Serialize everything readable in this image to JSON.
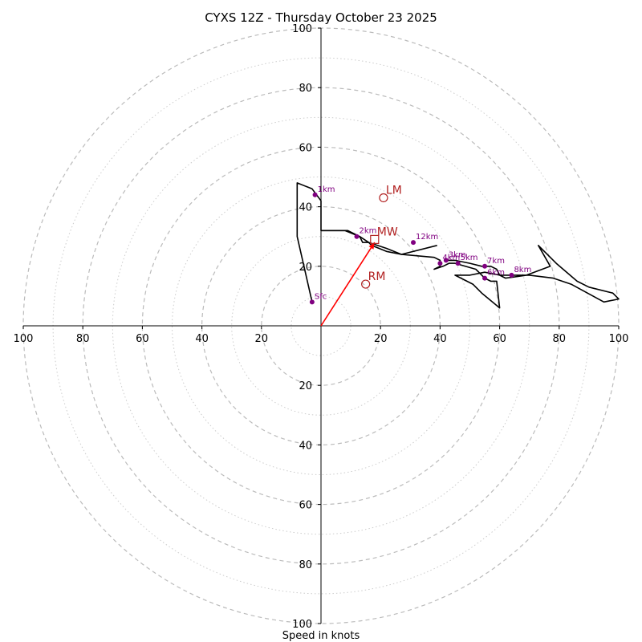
{
  "chart_data": {
    "type": "line",
    "title": "CYXS 12Z - Thursday October 23 2025",
    "xlabel": "Speed in knots",
    "ylabel": "",
    "xlim": [
      -100,
      100
    ],
    "ylim": [
      -100,
      100
    ],
    "x_tick_labels": [
      "100",
      "80",
      "60",
      "40",
      "20",
      "20",
      "40",
      "60",
      "80",
      "100"
    ],
    "y_tick_labels": [
      "100",
      "80",
      "60",
      "40",
      "20",
      "20",
      "40",
      "60",
      "80",
      "100"
    ],
    "ring_major": [
      20,
      40,
      60,
      80,
      100
    ],
    "ring_minor": [
      10,
      30,
      50,
      70,
      90
    ],
    "grid": true,
    "series": [
      {
        "name": "hodograph",
        "color": "#000000",
        "u": [
          -3,
          -8,
          -8,
          -3,
          0,
          0,
          9,
          13,
          16,
          17,
          22,
          27,
          38,
          40,
          40,
          38,
          41,
          43,
          45,
          52,
          55,
          57,
          59,
          60,
          54,
          51,
          45,
          46,
          48,
          50,
          55,
          60,
          70,
          78,
          84,
          95,
          100,
          98,
          90,
          86,
          79,
          73,
          77,
          69,
          62,
          60,
          59,
          57,
          54,
          50,
          45,
          42
        ],
        "v": [
          8,
          30,
          48,
          46,
          42,
          32,
          32,
          30,
          28,
          27,
          25,
          24,
          23,
          22,
          20,
          19,
          20,
          21,
          21,
          19,
          16,
          15,
          15,
          6,
          11,
          14,
          17,
          17,
          17,
          17,
          18,
          17,
          17,
          16,
          14,
          8,
          9,
          11,
          13,
          15,
          21,
          27,
          20,
          17,
          16,
          17,
          19,
          20,
          20,
          21,
          22,
          22
        ]
      },
      {
        "name": "upper-branch",
        "color": "#000000",
        "u": [
          0,
          3,
          8,
          13,
          14,
          16,
          22,
          27,
          39
        ],
        "v": [
          32,
          32,
          32,
          30,
          28,
          28,
          26,
          24,
          27
        ]
      }
    ],
    "altitude_markers": [
      {
        "label": "Sfc",
        "u": -3,
        "v": 8
      },
      {
        "label": "1km",
        "u": -2,
        "v": 44
      },
      {
        "label": "2km",
        "u": 12,
        "v": 30
      },
      {
        "label": "3km",
        "u": 42,
        "v": 22
      },
      {
        "label": "4km",
        "u": 40,
        "v": 21
      },
      {
        "label": "5km",
        "u": 46,
        "v": 21
      },
      {
        "label": "6km",
        "u": 55,
        "v": 16
      },
      {
        "label": "7km",
        "u": 55,
        "v": 20
      },
      {
        "label": "8km",
        "u": 64,
        "v": 17
      },
      {
        "label": "12km",
        "u": 31,
        "v": 28
      }
    ],
    "storm_motion": [
      {
        "label": "LM",
        "u": 21,
        "v": 43,
        "marker": "circle"
      },
      {
        "label": "MW",
        "u": 18,
        "v": 29,
        "marker": "square"
      },
      {
        "label": "RM",
        "u": 15,
        "v": 14,
        "marker": "circle"
      }
    ],
    "motion_vector": {
      "from": [
        0,
        0
      ],
      "to": [
        18,
        28
      ],
      "color": "#ff0000"
    },
    "colors": {
      "line": "#000000",
      "altitude_marker": "#800080",
      "storm_motion": "#b22222",
      "vector": "#ff0000",
      "grid": "#bbbbbb"
    }
  }
}
